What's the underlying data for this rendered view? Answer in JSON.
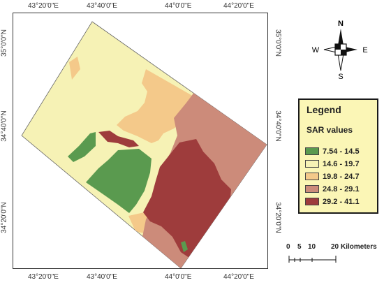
{
  "map": {
    "x_ticks": [
      "43°20'0\"E",
      "43°40'0\"E",
      "44°0'0\"E",
      "44°20'0\"E"
    ],
    "y_ticks": [
      "35°0'0\"N",
      "34°40'0\"N",
      "34°20'0\"N"
    ]
  },
  "legend": {
    "title": "Legend",
    "subtitle": "SAR values",
    "classes": [
      {
        "label": "7.54 - 14.5",
        "color": "#5a9a4f"
      },
      {
        "label": "14.6 - 19.7",
        "color": "#f6f2b5"
      },
      {
        "label": "19.8 - 24.7",
        "color": "#f4c98a"
      },
      {
        "label": "24.8 - 29.1",
        "color": "#cc8b7a"
      },
      {
        "label": "29.2 - 41.1",
        "color": "#9e3c3c"
      }
    ]
  },
  "compass": {
    "n": "N",
    "s": "S",
    "e": "E",
    "w": "W"
  },
  "scalebar": {
    "labels": [
      "0",
      "5",
      "10",
      "20"
    ],
    "unit": "Kilometers"
  }
}
